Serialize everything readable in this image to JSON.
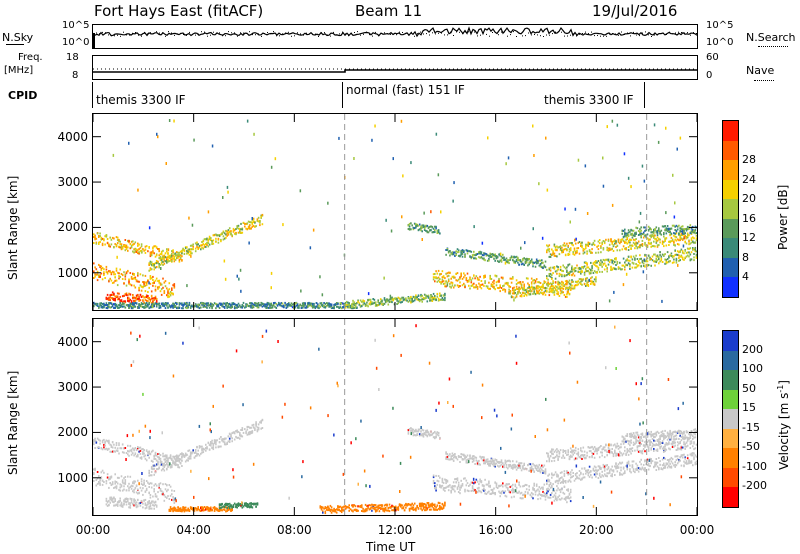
{
  "header": {
    "station": "Fort Hays East (fitACF)",
    "beam": "Beam 11",
    "date": "19/Jul/2016"
  },
  "noise": {
    "left_label": "N.Sky",
    "right_label": "N.Search",
    "left_ticks": [
      "10^5",
      "10^0"
    ],
    "right_ticks": [
      "10^5",
      "10^0"
    ]
  },
  "freq": {
    "left_label_line1": "Freq.",
    "left_label_line2": "[MHz]",
    "right_label": "Nave",
    "left_ticks": [
      "18",
      "8"
    ],
    "right_ticks": [
      "60",
      "0"
    ]
  },
  "cpid": {
    "label": "CPID",
    "segments": [
      "themis 3300 IF",
      "normal (fast) 151 IF",
      "themis 3300 IF"
    ]
  },
  "axes": {
    "ylabel": "Slant Range [km]",
    "xlabel": "Time UT"
  },
  "chart_data": [
    {
      "type": "heatmap",
      "title": "Power",
      "xlabel": "Time UT",
      "ylabel": "Slant Range [km]",
      "x_ticks": [
        "00:00",
        "04:00",
        "08:00",
        "12:00",
        "16:00",
        "20:00",
        "00:00"
      ],
      "xlim_hours": [
        0,
        24
      ],
      "y_ticks": [
        1000,
        2000,
        3000,
        4000
      ],
      "ylim": [
        180,
        4500
      ],
      "colorbar": {
        "label": "Power [dB]",
        "ticks": [
          4,
          8,
          12,
          16,
          20,
          24,
          28
        ],
        "colors": [
          "#1030ff",
          "#2060b0",
          "#3a8a78",
          "#5a9a5a",
          "#a6c840",
          "#f5d000",
          "#ff9e00",
          "#ff5a00",
          "#ff1a00"
        ]
      },
      "cpid_boundaries_hours": [
        10.0,
        22.0
      ],
      "bands": [
        {
          "t": [
            0.0,
            3.5
          ],
          "r": [
            1800,
            1350
          ],
          "width": 250,
          "level": 20
        },
        {
          "t": [
            2.2,
            6.7
          ],
          "r": [
            1150,
            2200
          ],
          "width": 220,
          "level": 18
        },
        {
          "t": [
            0.0,
            3.2
          ],
          "r": [
            1050,
            650
          ],
          "width": 380,
          "level": 22
        },
        {
          "t": [
            0.5,
            2.5
          ],
          "r": [
            500,
            420
          ],
          "width": 200,
          "level": 26
        },
        {
          "t": [
            0.0,
            10.5
          ],
          "r": [
            300,
            300
          ],
          "width": 120,
          "level": 10
        },
        {
          "t": [
            10.0,
            14.0
          ],
          "r": [
            320,
            500
          ],
          "width": 160,
          "level": 14
        },
        {
          "t": [
            13.5,
            19.0
          ],
          "r": [
            900,
            650
          ],
          "width": 350,
          "level": 20
        },
        {
          "t": [
            16.5,
            20.0
          ],
          "r": [
            550,
            850
          ],
          "width": 200,
          "level": 18
        },
        {
          "t": [
            18.0,
            24.0
          ],
          "r": [
            1000,
            1450
          ],
          "width": 280,
          "level": 16
        },
        {
          "t": [
            14.0,
            18.0
          ],
          "r": [
            1500,
            1200
          ],
          "width": 180,
          "level": 12
        },
        {
          "t": [
            18.0,
            24.0
          ],
          "r": [
            1500,
            1800
          ],
          "width": 280,
          "level": 18
        },
        {
          "t": [
            12.5,
            13.8
          ],
          "r": [
            2050,
            1950
          ],
          "width": 150,
          "level": 12
        },
        {
          "t": [
            21.0,
            24.0
          ],
          "r": [
            1900,
            2000
          ],
          "width": 200,
          "level": 12
        }
      ]
    },
    {
      "type": "heatmap",
      "title": "Velocity",
      "xlabel": "Time UT",
      "ylabel": "Slant Range [km]",
      "x_ticks": [
        "00:00",
        "04:00",
        "08:00",
        "12:00",
        "16:00",
        "20:00",
        "00:00"
      ],
      "xlim_hours": [
        0,
        24
      ],
      "y_ticks": [
        1000,
        2000,
        3000,
        4000
      ],
      "ylim": [
        180,
        4500
      ],
      "colorbar": {
        "label": "Velocity [m s^-1]",
        "ticks": [
          200,
          100,
          50,
          15,
          -15,
          -50,
          -100,
          -200
        ],
        "colors": [
          "#1a3ccc",
          "#2a6aa0",
          "#3c8a5a",
          "#6ed23a",
          "#c8c8c8",
          "#ffb040",
          "#ff8000",
          "#ff4a00",
          "#ff0000"
        ]
      },
      "cpid_boundaries_hours": [
        10.0,
        22.0
      ],
      "bands": [
        {
          "t": [
            0.0,
            3.5
          ],
          "r": [
            1800,
            1350
          ],
          "width": 250,
          "level": 0
        },
        {
          "t": [
            2.2,
            6.7
          ],
          "r": [
            1150,
            2200
          ],
          "width": 220,
          "level": 0
        },
        {
          "t": [
            0.0,
            3.2
          ],
          "r": [
            1050,
            650
          ],
          "width": 380,
          "level": 0
        },
        {
          "t": [
            0.5,
            2.5
          ],
          "r": [
            500,
            420
          ],
          "width": 200,
          "level": 0
        },
        {
          "t": [
            3.0,
            5.5
          ],
          "r": [
            330,
            330
          ],
          "width": 100,
          "level": -60
        },
        {
          "t": [
            5.0,
            6.5
          ],
          "r": [
            400,
            420
          ],
          "width": 100,
          "level": 40
        },
        {
          "t": [
            9.0,
            14.0
          ],
          "r": [
            320,
            400
          ],
          "width": 160,
          "level": -60
        },
        {
          "t": [
            13.5,
            19.0
          ],
          "r": [
            900,
            650
          ],
          "width": 350,
          "level": 0
        },
        {
          "t": [
            18.0,
            24.0
          ],
          "r": [
            1000,
            1450
          ],
          "width": 280,
          "level": 0
        },
        {
          "t": [
            14.0,
            18.0
          ],
          "r": [
            1500,
            1200
          ],
          "width": 180,
          "level": 0
        },
        {
          "t": [
            18.0,
            24.0
          ],
          "r": [
            1500,
            1800
          ],
          "width": 280,
          "level": 0
        },
        {
          "t": [
            12.5,
            13.8
          ],
          "r": [
            2050,
            1950
          ],
          "width": 150,
          "level": 0
        },
        {
          "t": [
            21.0,
            24.0
          ],
          "r": [
            1900,
            2000
          ],
          "width": 200,
          "level": 0
        }
      ]
    }
  ]
}
